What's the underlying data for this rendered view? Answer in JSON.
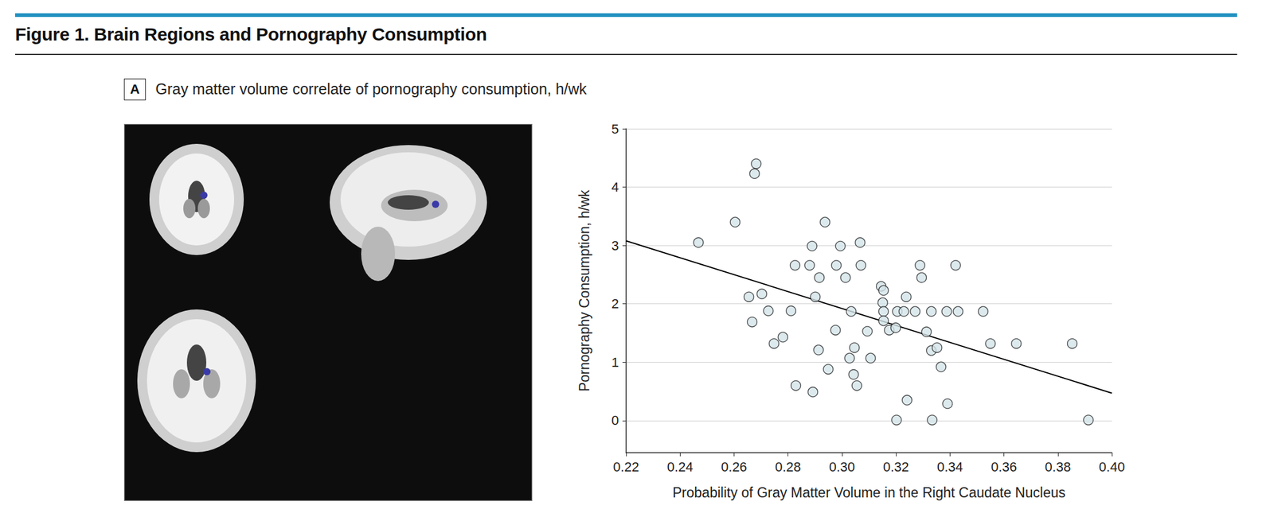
{
  "chart_data": {
    "type": "scatter",
    "figure_title": "Figure 1. Brain Regions and Pornography Consumption",
    "panel_label": "A",
    "title": "Gray matter volume correlate of pornography consumption, h/wk",
    "x_label": "Probability of Gray Matter Volume in the Right Caudate Nucleus",
    "y_label": "Pornography Consumption, h/wk",
    "xlim": [
      0.22,
      0.4
    ],
    "xticks": [
      0.22,
      0.24,
      0.26,
      0.28,
      {
        "value": 0.3,
        "label": "0.30"
      },
      0.32,
      0.34,
      0.36,
      0.38,
      {
        "value": 0.4,
        "label": "0.40"
      }
    ],
    "ylim": [
      -0.55,
      5
    ],
    "yticks": [
      0,
      1,
      2,
      3,
      4,
      5
    ],
    "grid": true,
    "series": [
      {
        "type": "scatter",
        "marker": "circle",
        "color": "#d3e3e8",
        "x": [
          0.2468,
          0.2604,
          0.2682,
          0.2676,
          0.2655,
          0.2703,
          0.2667,
          0.2727,
          0.2748,
          0.2781,
          0.2811,
          0.2826,
          0.2829,
          0.288,
          0.2889,
          0.2892,
          0.2901,
          0.2916,
          0.2913,
          0.2937,
          0.2949,
          0.2976,
          0.2979,
          0.2994,
          0.3013,
          0.3028,
          0.3034,
          0.3046,
          0.3043,
          0.3055,
          0.3067,
          0.307,
          0.3094,
          0.3106,
          0.3145,
          0.3154,
          0.3151,
          0.3154,
          0.3154,
          0.3175,
          0.3199,
          0.3205,
          0.3202,
          0.3229,
          0.3238,
          0.3241,
          0.3271,
          0.3289,
          0.3295,
          0.3313,
          0.3331,
          0.3331,
          0.3334,
          0.3352,
          0.3367,
          0.3388,
          0.3391,
          0.3421,
          0.343,
          0.3523,
          0.355,
          0.3646,
          0.3853,
          0.3913
        ],
        "values": [
          3.05,
          3.4,
          4.4,
          4.23,
          2.12,
          2.17,
          1.69,
          1.88,
          1.32,
          1.43,
          1.88,
          2.66,
          0.6,
          2.66,
          2.99,
          0.49,
          2.12,
          2.45,
          1.21,
          3.4,
          0.88,
          1.55,
          2.66,
          2.99,
          2.45,
          1.07,
          1.87,
          1.25,
          0.79,
          0.6,
          3.05,
          2.66,
          1.53,
          1.07,
          2.3,
          2.23,
          2.02,
          1.87,
          1.71,
          1.55,
          1.59,
          1.87,
          0.01,
          1.87,
          2.12,
          0.35,
          1.87,
          2.66,
          2.45,
          1.52,
          1.87,
          1.2,
          0.01,
          1.25,
          0.92,
          1.87,
          0.29,
          2.66,
          1.87,
          1.87,
          1.32,
          1.32,
          1.32,
          0.01
        ]
      },
      {
        "type": "line",
        "line_style": "solid",
        "color": "#000000",
        "x": [
          0.22,
          0.4
        ],
        "values": [
          3.08,
          0.47
        ]
      }
    ]
  }
}
